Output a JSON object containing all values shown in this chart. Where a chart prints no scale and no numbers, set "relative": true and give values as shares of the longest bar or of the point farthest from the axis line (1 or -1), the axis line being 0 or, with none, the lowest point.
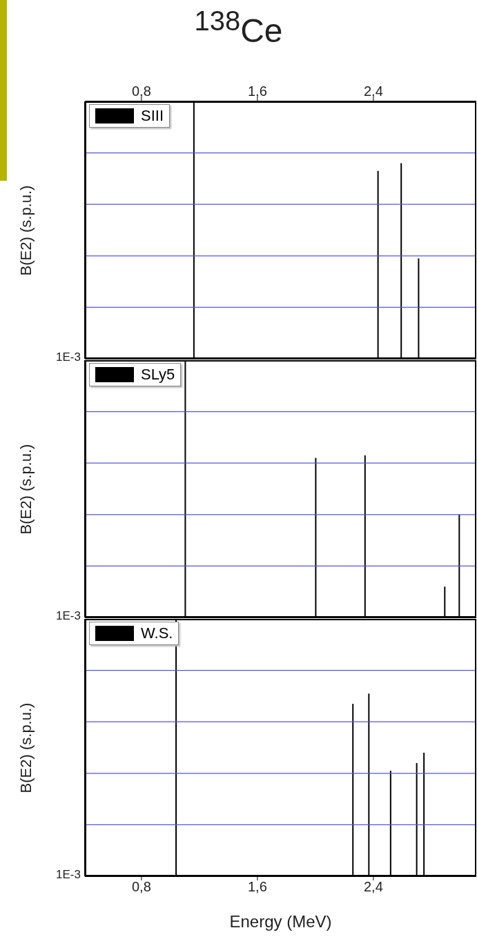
{
  "chart_data": [
    {
      "type": "bar",
      "title": "$^{138}$Ce",
      "ylabel": "B(E2) (s.p.u.)",
      "relative": true,
      "annotations": [
        "1E-3"
      ],
      "ref_lines": [
        {
          "axis": "y",
          "value": 0.2,
          "color": "#5555dd"
        },
        {
          "axis": "y",
          "value": 0.4,
          "color": "#5555dd"
        },
        {
          "axis": "y",
          "value": 0.6,
          "color": "#5555dd"
        },
        {
          "axis": "y",
          "value": 0.8,
          "color": "#5555dd"
        }
      ],
      "xlim": [
        0.41,
        3.11
      ],
      "xticks": [
        {
          "value": 0.8,
          "label": null
        },
        {
          "value": 1.6,
          "label": null
        },
        {
          "value": 2.4,
          "label": null
        }
      ],
      "x2lim": [
        0.41,
        3.11
      ],
      "x2ticks": [
        {
          "value": 0.8,
          "label": "0,8"
        },
        {
          "value": 1.6,
          "label": "1,6"
        },
        {
          "value": 2.4,
          "label": "2,4"
        }
      ],
      "tick_labels": false,
      "legend": "top left",
      "series": [
        {
          "name": "SIII",
          "color": "#000000",
          "x": [
            1.16,
            2.43,
            2.59,
            2.71
          ],
          "values": [
            1.0,
            0.73,
            0.76,
            0.39
          ]
        }
      ]
    },
    {
      "type": "bar",
      "ylabel": "B(E2) (s.p.u.)",
      "relative": true,
      "annotations": [
        "1E-3"
      ],
      "ref_lines": [
        {
          "axis": "y",
          "value": 0.2,
          "color": "#5555dd"
        },
        {
          "axis": "y",
          "value": 0.4,
          "color": "#5555dd"
        },
        {
          "axis": "y",
          "value": 0.6,
          "color": "#5555dd"
        },
        {
          "axis": "y",
          "value": 0.8,
          "color": "#5555dd"
        }
      ],
      "xlim": [
        0.41,
        3.11
      ],
      "xticks": [
        {
          "value": 0.8,
          "label": null
        },
        {
          "value": 1.6,
          "label": null
        },
        {
          "value": 2.4,
          "label": null
        }
      ],
      "tick_labels": false,
      "legend": "top left",
      "series": [
        {
          "name": "SLy5",
          "color": "#000000",
          "x": [
            1.1,
            2.0,
            2.34,
            2.89,
            2.99
          ],
          "values": [
            1.0,
            0.62,
            0.63,
            0.12,
            0.4
          ]
        }
      ]
    },
    {
      "type": "bar",
      "ylabel": "B(E2) (s.p.u.)",
      "xlabel": "Energy (MeV)",
      "relative": true,
      "annotations": [
        "1E-3"
      ],
      "ref_lines": [
        {
          "axis": "y",
          "value": 0.2,
          "color": "#5555dd"
        },
        {
          "axis": "y",
          "value": 0.4,
          "color": "#5555dd"
        },
        {
          "axis": "y",
          "value": 0.6,
          "color": "#5555dd"
        },
        {
          "axis": "y",
          "value": 0.8,
          "color": "#5555dd"
        }
      ],
      "xlim": [
        0.41,
        3.11
      ],
      "xticks": [
        {
          "value": 0.8,
          "label": "0,8"
        },
        {
          "value": 1.6,
          "label": "1,6"
        },
        {
          "value": 2.4,
          "label": "2,4"
        }
      ],
      "tick_labels": "x",
      "legend": "top left",
      "series": [
        {
          "name": "W.S.",
          "color": "#000000",
          "x": [
            1.04,
            2.26,
            2.37,
            2.52,
            2.7,
            2.75
          ],
          "values": [
            1.0,
            0.67,
            0.71,
            0.41,
            0.44,
            0.48
          ]
        }
      ]
    }
  ]
}
